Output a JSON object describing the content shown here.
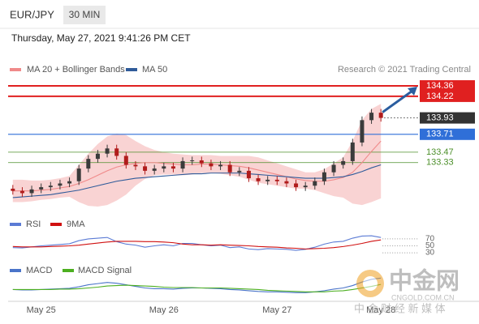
{
  "header": {
    "symbol": "EUR/JPY",
    "interval": "30 MIN",
    "timestamp": "Thursday, May 27, 2021 9:41:26 PM CET"
  },
  "watermark": {
    "logo": "中金网",
    "url": "CNGOLD.COM.CN",
    "tagline": "中 金 财 经 新 媒 体"
  },
  "chart_data": [
    {
      "type": "candlestick",
      "credit": "Research © 2021 Trading Central",
      "categories": [
        null,
        null,
        null,
        "May 25",
        null,
        null,
        null,
        null,
        null,
        null,
        null,
        null,
        null,
        null,
        null,
        null,
        "May 26",
        null,
        null,
        null,
        null,
        null,
        null,
        null,
        null,
        null,
        null,
        null,
        "May 27",
        null,
        null,
        null,
        null,
        null,
        null,
        null,
        null,
        null,
        null,
        "May 28"
      ],
      "candles": {
        "up_color": "#3b3b3b",
        "down_color": "#b01c1c",
        "open": [
          132.98,
          132.95,
          132.92,
          132.97,
          133.0,
          133.02,
          133.05,
          133.08,
          133.25,
          133.38,
          133.45,
          133.52,
          133.42,
          133.3,
          133.28,
          133.22,
          133.25,
          133.28,
          133.25,
          133.35,
          133.36,
          133.32,
          133.28,
          133.3,
          133.2,
          133.22,
          133.12,
          133.08,
          133.1,
          133.08,
          133.05,
          133.0,
          133.02,
          133.08,
          133.2,
          133.3,
          133.35,
          133.6,
          133.9,
          134.0
        ],
        "high": [
          133.03,
          133.0,
          133.02,
          133.05,
          133.07,
          133.1,
          133.13,
          133.3,
          133.43,
          133.5,
          133.57,
          133.57,
          133.47,
          133.35,
          133.33,
          133.3,
          133.33,
          133.33,
          133.4,
          133.41,
          133.41,
          133.37,
          133.35,
          133.35,
          133.27,
          133.27,
          133.17,
          133.15,
          133.15,
          133.13,
          133.1,
          133.07,
          133.13,
          133.25,
          133.35,
          133.4,
          133.65,
          133.95,
          134.05,
          134.05
        ],
        "low": [
          132.9,
          132.87,
          132.87,
          132.92,
          132.95,
          132.97,
          133.0,
          133.03,
          133.2,
          133.33,
          133.4,
          133.37,
          133.25,
          133.23,
          133.17,
          133.17,
          133.2,
          133.2,
          133.2,
          133.3,
          133.27,
          133.23,
          133.23,
          133.15,
          133.15,
          133.07,
          133.03,
          133.03,
          133.03,
          133.0,
          132.95,
          132.95,
          132.97,
          133.03,
          133.15,
          133.25,
          133.3,
          133.55,
          133.85,
          133.88
        ],
        "close": [
          132.95,
          132.92,
          132.97,
          133.0,
          133.02,
          133.05,
          133.08,
          133.25,
          133.38,
          133.45,
          133.52,
          133.42,
          133.3,
          133.28,
          133.22,
          133.25,
          133.28,
          133.25,
          133.35,
          133.36,
          133.32,
          133.28,
          133.3,
          133.2,
          133.22,
          133.12,
          133.08,
          133.1,
          133.08,
          133.05,
          133.0,
          133.02,
          133.08,
          133.2,
          133.3,
          133.35,
          133.6,
          133.9,
          134.0,
          133.93
        ]
      },
      "bands": {
        "color": "#f9d3d3",
        "upper": [
          133.1,
          133.1,
          133.09,
          133.09,
          133.1,
          133.12,
          133.15,
          133.3,
          133.45,
          133.58,
          133.68,
          133.72,
          133.7,
          133.62,
          133.55,
          133.5,
          133.47,
          133.45,
          133.44,
          133.43,
          133.43,
          133.43,
          133.42,
          133.42,
          133.42,
          133.42,
          133.4,
          133.36,
          133.32,
          133.28,
          133.24,
          133.2,
          133.2,
          133.24,
          133.32,
          133.4,
          133.62,
          133.9,
          134.05,
          134.12
        ],
        "lower": [
          132.8,
          132.8,
          132.81,
          132.83,
          132.84,
          132.86,
          132.87,
          132.8,
          132.75,
          132.74,
          132.76,
          132.82,
          132.9,
          133.02,
          133.11,
          133.16,
          133.17,
          133.17,
          133.16,
          133.17,
          133.19,
          133.19,
          133.18,
          133.16,
          133.14,
          133.1,
          133.06,
          133.04,
          133.02,
          133.0,
          132.98,
          132.98,
          132.96,
          132.92,
          132.88,
          132.86,
          132.78,
          132.76,
          132.8,
          132.85
        ]
      },
      "series": [
        {
          "name": "MA 20 + Bollinger Bands",
          "color": "#f08a8a",
          "values": [
            132.95,
            132.95,
            132.95,
            132.96,
            132.97,
            132.99,
            133.01,
            133.05,
            133.1,
            133.16,
            133.22,
            133.27,
            133.3,
            133.32,
            133.33,
            133.33,
            133.32,
            133.31,
            133.3,
            133.3,
            133.31,
            133.31,
            133.3,
            133.29,
            133.28,
            133.26,
            133.23,
            133.2,
            133.17,
            133.14,
            133.11,
            133.09,
            133.08,
            133.08,
            133.1,
            133.13,
            133.2,
            133.33,
            133.48,
            133.62
          ]
        },
        {
          "name": "MA 50",
          "color": "#2f5b9a",
          "values": [
            132.86,
            132.87,
            132.88,
            132.89,
            132.9,
            132.92,
            132.94,
            132.96,
            132.99,
            133.02,
            133.05,
            133.08,
            133.1,
            133.12,
            133.13,
            133.14,
            133.15,
            133.16,
            133.17,
            133.18,
            133.18,
            133.19,
            133.19,
            133.19,
            133.19,
            133.18,
            133.17,
            133.16,
            133.15,
            133.14,
            133.13,
            133.12,
            133.12,
            133.12,
            133.13,
            133.14,
            133.17,
            133.21,
            133.26,
            133.3
          ]
        }
      ],
      "levels": [
        {
          "value": 134.36,
          "color": "#e02020",
          "line": "solid",
          "label_style": "box"
        },
        {
          "value": 134.22,
          "color": "#e02020",
          "line": "solid",
          "label_style": "box"
        },
        {
          "value": 133.93,
          "color": "#333333",
          "line": "dotted",
          "label_style": "box"
        },
        {
          "value": 133.71,
          "color": "#2f6fd8",
          "line": "solid",
          "label_style": "box"
        },
        {
          "value": 133.47,
          "color": "#4c8f2a",
          "line": "thin",
          "label_style": "text"
        },
        {
          "value": 133.33,
          "color": "#4c8f2a",
          "line": "thin",
          "label_style": "text"
        }
      ],
      "ylim": [
        132.74,
        134.48
      ]
    },
    {
      "type": "line",
      "series": [
        {
          "name": "RSI",
          "color": "#5b7bd5",
          "values": [
            45,
            44,
            47,
            50,
            52,
            54,
            56,
            65,
            70,
            72,
            74,
            62,
            55,
            52,
            46,
            50,
            53,
            50,
            57,
            57,
            53,
            50,
            52,
            45,
            47,
            41,
            39,
            42,
            41,
            40,
            37,
            40,
            46,
            55,
            61,
            63,
            72,
            78,
            79,
            74
          ]
        },
        {
          "name": "9MA",
          "color": "#d01010",
          "values": [
            48,
            47,
            47,
            47,
            48,
            49,
            50,
            52,
            55,
            58,
            61,
            63,
            63,
            63,
            62,
            62,
            61,
            59,
            55,
            53,
            53,
            52,
            53,
            52,
            51,
            50,
            48,
            47,
            46,
            44,
            43,
            41,
            42,
            43,
            45,
            48,
            52,
            57,
            63,
            67
          ]
        }
      ],
      "ylim": [
        0,
        100
      ],
      "yticks": [
        30,
        50,
        70
      ]
    },
    {
      "type": "line",
      "series": [
        {
          "name": "MACD",
          "color": "#4a74c9",
          "values": [
            0.0,
            -0.01,
            -0.01,
            0.0,
            0.01,
            0.02,
            0.03,
            0.07,
            0.12,
            0.15,
            0.18,
            0.16,
            0.12,
            0.08,
            0.04,
            0.02,
            0.02,
            0.01,
            0.03,
            0.04,
            0.04,
            0.03,
            0.02,
            0.0,
            -0.01,
            -0.03,
            -0.05,
            -0.06,
            -0.06,
            -0.07,
            -0.08,
            -0.08,
            -0.06,
            -0.03,
            0.01,
            0.04,
            0.1,
            0.19,
            0.26,
            0.29
          ]
        },
        {
          "name": "MACD Signal",
          "color": "#4caf20",
          "values": [
            0.0,
            0.0,
            0.0,
            0.0,
            0.0,
            0.01,
            0.01,
            0.02,
            0.04,
            0.06,
            0.09,
            0.1,
            0.11,
            0.1,
            0.09,
            0.08,
            0.06,
            0.05,
            0.05,
            0.05,
            0.04,
            0.04,
            0.04,
            0.03,
            0.02,
            0.01,
            0.0,
            -0.02,
            -0.03,
            -0.04,
            -0.05,
            -0.06,
            -0.06,
            -0.06,
            -0.04,
            -0.03,
            0.0,
            0.04,
            0.08,
            0.13
          ]
        }
      ],
      "ylim": [
        -0.3,
        0.4
      ]
    }
  ]
}
